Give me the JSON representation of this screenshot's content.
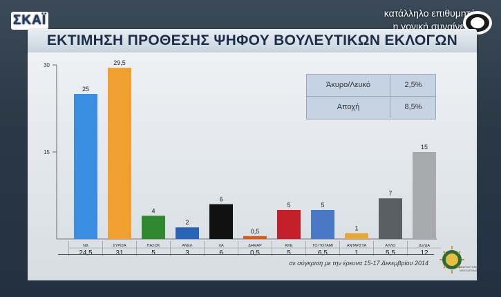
{
  "channel": {
    "logo_text": "ΣΚΑΪ"
  },
  "notice": {
    "line1": "κατάλληλο επιθυμητή",
    "line2": "η γονική συναίνεση"
  },
  "title": "ΕΚΤΙΜΗΣΗ ΠΡΟΘΕΣΗΣ ΨΗΦΟΥ ΒΟΥΛΕΥΤΙΚΩΝ ΕΚΛΟΓΩΝ",
  "legend": {
    "rows": [
      {
        "label": "Άκυρο/Λευκό",
        "value": "2,5%"
      },
      {
        "label": "Αποχή",
        "value": "8,5%"
      }
    ]
  },
  "footnote": "σε σύγκριση με την έρευνα 15-17 Δεκεμβρίου 2014",
  "brand": {
    "text": "ΠΑΝΕΠΙΣΤΗΜΙΟ ΜΑΚΕΔΟΝΙΑΣ"
  },
  "chart_data": {
    "type": "bar",
    "title": "ΕΚΤΙΜΗΣΗ ΠΡΟΘΕΣΗΣ ΨΗΦΟΥ ΒΟΥΛΕΥΤΙΚΩΝ ΕΚΛΟΓΩΝ",
    "ylim": [
      0,
      30
    ],
    "yticks": [
      15,
      30
    ],
    "grid": false,
    "categories": [
      "ΝΔ",
      "ΣΥΡΙΖΑ",
      "ΠΑΣΟΚ",
      "ΑΝΕΛ",
      "ΧΑ",
      "ΔΗΜΑΡ",
      "ΚΚΕ",
      "ΤΟ ΠΟΤΑΜΙ",
      "ΑΝΤΑΡΣΥΑ",
      "ΑΛΛΟ",
      "ΔΞ/ΔΑ"
    ],
    "values": [
      25,
      29.5,
      4,
      2,
      6,
      0.5,
      5,
      5,
      1,
      7,
      15
    ],
    "value_labels": [
      "25",
      "29,5",
      "4",
      "2",
      "6",
      "0,5",
      "5",
      "5",
      "1",
      "7",
      "15"
    ],
    "previous_values": [
      "24,5",
      "31",
      "5",
      "3",
      "6",
      "0,5",
      "5",
      "6,5",
      "1",
      "5,5",
      "12"
    ],
    "colors": [
      "#3a8de0",
      "#f0a030",
      "#2f8a2f",
      "#2a64b8",
      "#111111",
      "#e05a1a",
      "#c4202a",
      "#4a78c4",
      "#e8a838",
      "#5a5f66",
      "#a8aaad"
    ]
  }
}
